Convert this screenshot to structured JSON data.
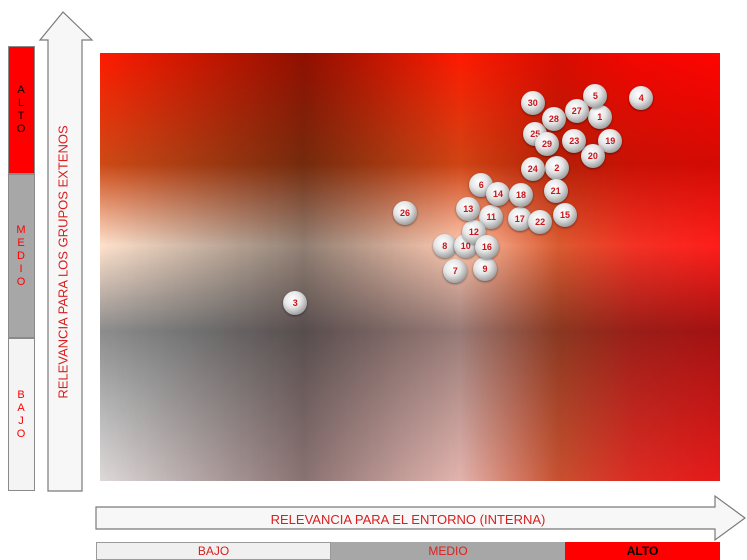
{
  "y_axis": {
    "title": "RELEVANCIA PARA LOS GRUPOS EXTENOS",
    "levels": {
      "high": "ALTO",
      "medium": "MEDIO",
      "low": "BAJO"
    }
  },
  "x_axis": {
    "title": "RELEVANCIA PARA EL ENTORNO (INTERNA)",
    "levels": {
      "low": "BAJO",
      "medium": "MEDIO",
      "high": "ALTO"
    }
  },
  "colors": {
    "red": "#fe0000",
    "gray": "#a7a7a7",
    "light": "#f0f0f0",
    "text_red": "#d81e1e"
  },
  "chart_data": {
    "type": "scatter",
    "xlabel": "RELEVANCIA PARA EL ENTORNO (INTERNA)",
    "ylabel": "RELEVANCIA PARA LOS GRUPOS EXTENOS",
    "xlim": [
      0,
      100
    ],
    "ylim": [
      0,
      100
    ],
    "points": [
      {
        "label": "1",
        "x": 80.6,
        "y": 85.0
      },
      {
        "label": "2",
        "x": 73.7,
        "y": 73.1
      },
      {
        "label": "3",
        "x": 31.5,
        "y": 41.6
      },
      {
        "label": "4",
        "x": 87.3,
        "y": 89.5
      },
      {
        "label": "5",
        "x": 79.9,
        "y": 90.0
      },
      {
        "label": "6",
        "x": 61.5,
        "y": 69.2
      },
      {
        "label": "7",
        "x": 57.3,
        "y": 49.1
      },
      {
        "label": "8",
        "x": 55.6,
        "y": 54.9
      },
      {
        "label": "9",
        "x": 62.1,
        "y": 49.5
      },
      {
        "label": "10",
        "x": 59.0,
        "y": 54.9
      },
      {
        "label": "11",
        "x": 63.1,
        "y": 61.7
      },
      {
        "label": "12",
        "x": 60.3,
        "y": 58.2
      },
      {
        "label": "13",
        "x": 59.4,
        "y": 63.6
      },
      {
        "label": "14",
        "x": 64.2,
        "y": 67.1
      },
      {
        "label": "15",
        "x": 75.0,
        "y": 62.1
      },
      {
        "label": "16",
        "x": 62.4,
        "y": 54.7
      },
      {
        "label": "17",
        "x": 67.7,
        "y": 61.2
      },
      {
        "label": "18",
        "x": 67.9,
        "y": 66.8
      },
      {
        "label": "19",
        "x": 82.3,
        "y": 79.4
      },
      {
        "label": "20",
        "x": 79.5,
        "y": 75.9
      },
      {
        "label": "21",
        "x": 73.5,
        "y": 67.8
      },
      {
        "label": "22",
        "x": 71.0,
        "y": 60.5
      },
      {
        "label": "23",
        "x": 76.5,
        "y": 79.4
      },
      {
        "label": "24",
        "x": 69.8,
        "y": 72.9
      },
      {
        "label": "25",
        "x": 70.2,
        "y": 81.1
      },
      {
        "label": "26",
        "x": 49.2,
        "y": 62.6
      },
      {
        "label": "27",
        "x": 76.9,
        "y": 86.4
      },
      {
        "label": "28",
        "x": 73.2,
        "y": 84.6
      },
      {
        "label": "29",
        "x": 72.1,
        "y": 78.7
      },
      {
        "label": "30",
        "x": 69.8,
        "y": 88.3
      }
    ]
  }
}
